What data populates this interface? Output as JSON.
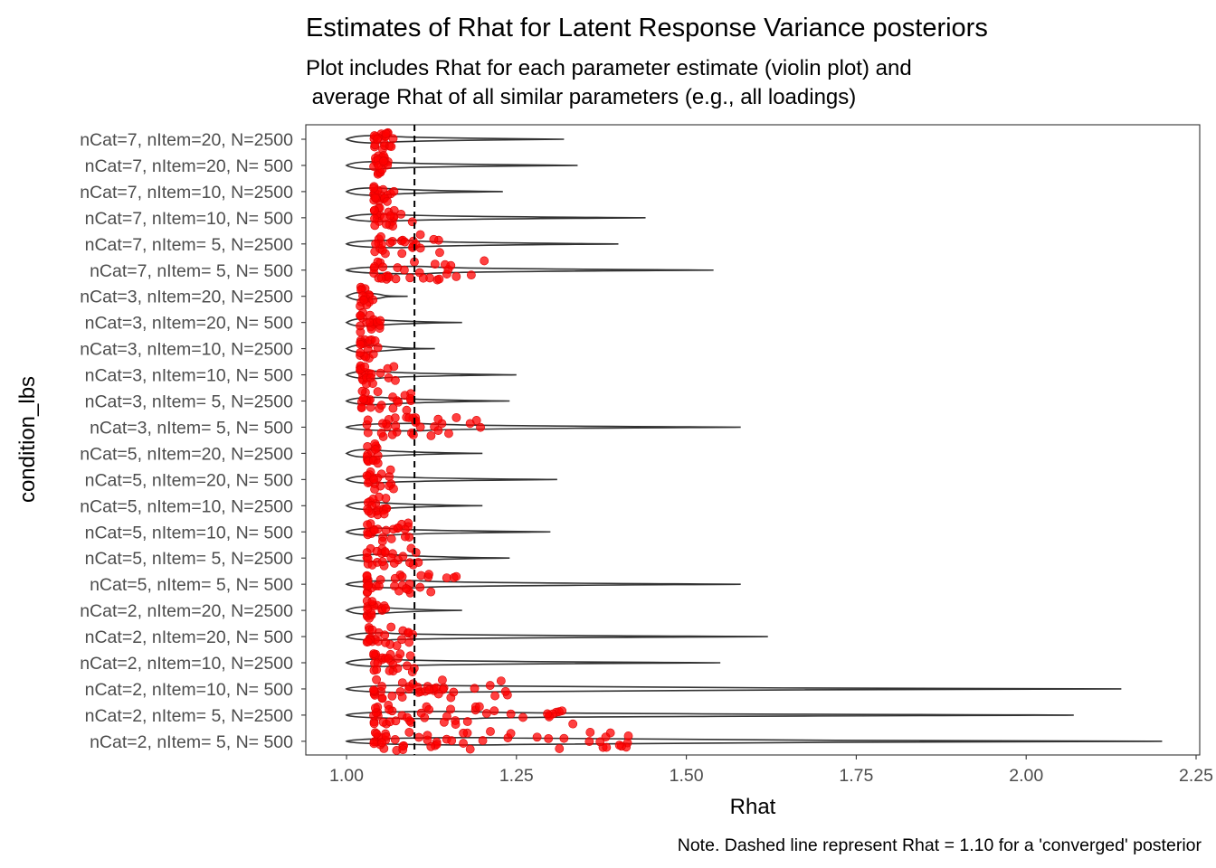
{
  "chart_data": {
    "type": "violin",
    "title": "Estimates of Rhat for Latent Response Variance posteriors",
    "subtitle_lines": [
      "Plot includes Rhat for each parameter estimate (violin plot) and",
      " average Rhat of all similar parameters (e.g., all loadings)"
    ],
    "xlabel": "Rhat",
    "ylabel": "condition_lbs",
    "caption": "Note. Dashed line represent Rhat = 1.10 for a 'converged' posterior",
    "xlim": [
      0.94,
      2.25
    ],
    "xticks": [
      1.0,
      1.25,
      1.5,
      1.75,
      2.0,
      2.25
    ],
    "xtick_labels": [
      "1.00",
      "1.25",
      "1.50",
      "1.75",
      "2.00",
      "2.25"
    ],
    "reference_line": 1.1,
    "point_color": "#ff0000",
    "violin_color": "#333333",
    "grid": false,
    "categories": [
      {
        "label": "nCat=7, nItem=20, N=2500",
        "max": 1.32,
        "pmin": 1.04,
        "pmax": 1.07,
        "npts": 20
      },
      {
        "label": "nCat=7, nItem=20, N=  500",
        "max": 1.34,
        "pmin": 1.04,
        "pmax": 1.07,
        "npts": 20
      },
      {
        "label": "nCat=7, nItem=10, N=2500",
        "max": 1.23,
        "pmin": 1.04,
        "pmax": 1.07,
        "npts": 20
      },
      {
        "label": "nCat=7, nItem=10, N=  500",
        "max": 1.44,
        "pmin": 1.04,
        "pmax": 1.1,
        "npts": 22
      },
      {
        "label": "nCat=7, nItem=  5, N=2500",
        "max": 1.4,
        "pmin": 1.04,
        "pmax": 1.15,
        "npts": 24
      },
      {
        "label": "nCat=7, nItem=  5, N=  500",
        "max": 1.54,
        "pmin": 1.04,
        "pmax": 1.21,
        "npts": 30
      },
      {
        "label": "nCat=3, nItem=20, N=2500",
        "max": 1.09,
        "pmin": 1.02,
        "pmax": 1.04,
        "npts": 16
      },
      {
        "label": "nCat=3, nItem=20, N=  500",
        "max": 1.17,
        "pmin": 1.02,
        "pmax": 1.05,
        "npts": 18
      },
      {
        "label": "nCat=3, nItem=10, N=2500",
        "max": 1.13,
        "pmin": 1.02,
        "pmax": 1.05,
        "npts": 18
      },
      {
        "label": "nCat=3, nItem=10, N=  500",
        "max": 1.25,
        "pmin": 1.02,
        "pmax": 1.08,
        "npts": 20
      },
      {
        "label": "nCat=3, nItem=  5, N=2500",
        "max": 1.24,
        "pmin": 1.02,
        "pmax": 1.1,
        "npts": 24
      },
      {
        "label": "nCat=3, nItem=  5, N=  500",
        "max": 1.58,
        "pmin": 1.03,
        "pmax": 1.21,
        "npts": 32
      },
      {
        "label": "nCat=5, nItem=20, N=2500",
        "max": 1.2,
        "pmin": 1.03,
        "pmax": 1.05,
        "npts": 16
      },
      {
        "label": "nCat=5, nItem=20, N=  500",
        "max": 1.31,
        "pmin": 1.03,
        "pmax": 1.07,
        "npts": 18
      },
      {
        "label": "nCat=5, nItem=10, N=2500",
        "max": 1.2,
        "pmin": 1.03,
        "pmax": 1.06,
        "npts": 18
      },
      {
        "label": "nCat=5, nItem=10, N=  500",
        "max": 1.3,
        "pmin": 1.03,
        "pmax": 1.1,
        "npts": 22
      },
      {
        "label": "nCat=5, nItem=  5, N=2500",
        "max": 1.24,
        "pmin": 1.03,
        "pmax": 1.11,
        "npts": 24
      },
      {
        "label": "nCat=5, nItem=  5, N=  500",
        "max": 1.58,
        "pmin": 1.03,
        "pmax": 1.19,
        "npts": 32
      },
      {
        "label": "nCat=2, nItem=20, N=2500",
        "max": 1.17,
        "pmin": 1.03,
        "pmax": 1.06,
        "npts": 16
      },
      {
        "label": "nCat=2, nItem=20, N=  500",
        "max": 1.62,
        "pmin": 1.03,
        "pmax": 1.1,
        "npts": 24
      },
      {
        "label": "nCat=2, nItem=10, N=2500",
        "max": 1.55,
        "pmin": 1.04,
        "pmax": 1.1,
        "npts": 24
      },
      {
        "label": "nCat=2, nItem=10, N=  500",
        "max": 2.14,
        "pmin": 1.04,
        "pmax": 1.25,
        "npts": 38
      },
      {
        "label": "nCat=2, nItem=  5, N=2500",
        "max": 2.07,
        "pmin": 1.04,
        "pmax": 1.35,
        "npts": 44
      },
      {
        "label": "nCat=2, nItem=  5, N=  500",
        "max": 2.2,
        "pmin": 1.04,
        "pmax": 1.44,
        "npts": 52
      }
    ]
  }
}
